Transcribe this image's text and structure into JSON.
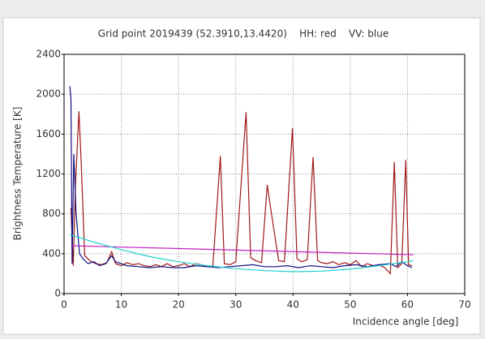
{
  "chart_data": {
    "type": "line",
    "title": "Grid point 2019439 (52.3910,13.4420)    HH: red    VV: blue",
    "x_label": "Incidence angle [deg]",
    "y_label": "Brightness Temperature [K]",
    "xlim": [
      0,
      70
    ],
    "xticks": [
      0,
      10,
      20,
      30,
      40,
      50,
      60,
      70
    ],
    "ylim": [
      0,
      2400
    ],
    "yticks": [
      0,
      400,
      800,
      1200,
      1600,
      2000,
      2400
    ],
    "grid": true,
    "series": [
      {
        "color": "#a01818",
        "x": [
          1.2,
          1.6,
          2.0,
          2.6,
          3.0,
          3.6,
          4.5,
          5.5,
          6.5,
          7.5,
          8.3,
          9,
          10,
          11,
          12,
          13,
          14,
          15,
          16,
          17,
          18,
          19,
          20,
          21,
          22,
          23,
          24,
          25,
          26,
          27.3,
          28,
          29,
          30,
          31.8,
          32.6,
          33.5,
          34.5,
          35.5,
          36.5,
          37.5,
          38.5,
          39.9,
          40.7,
          41.5,
          42.5,
          43.5,
          44.3,
          45,
          46,
          47,
          48,
          49,
          50,
          51,
          52,
          53,
          54,
          55,
          56,
          57,
          57.7,
          58.3,
          59,
          59.7,
          60.2,
          60.8
        ],
        "values": [
          860,
          280,
          1100,
          1830,
          1300,
          380,
          330,
          300,
          290,
          310,
          420,
          300,
          280,
          310,
          290,
          300,
          280,
          270,
          290,
          270,
          300,
          270,
          280,
          300,
          270,
          300,
          290,
          270,
          280,
          1380,
          300,
          290,
          320,
          1820,
          360,
          330,
          310,
          1090,
          700,
          330,
          320,
          1660,
          350,
          320,
          340,
          1370,
          330,
          310,
          300,
          320,
          290,
          310,
          290,
          330,
          270,
          300,
          280,
          290,
          260,
          200,
          1320,
          260,
          300,
          1340,
          290,
          280
        ]
      },
      {
        "color": "#101080",
        "x": [
          1.0,
          1.2,
          1.4,
          1.7,
          2.1,
          2.7,
          3.3,
          4.2,
          5.2,
          6.2,
          7.3,
          8.3,
          9,
          10,
          11,
          13,
          15,
          17,
          19,
          21,
          23,
          25,
          27,
          29,
          31,
          33,
          35,
          37,
          39,
          41,
          43,
          45,
          47,
          49,
          51,
          53,
          55,
          57,
          58,
          59,
          60,
          60.8
        ],
        "values": [
          2080,
          1950,
          300,
          1400,
          800,
          400,
          350,
          300,
          320,
          280,
          300,
          380,
          320,
          300,
          280,
          270,
          260,
          270,
          260,
          260,
          280,
          270,
          260,
          270,
          280,
          290,
          270,
          270,
          280,
          260,
          280,
          270,
          260,
          280,
          290,
          270,
          290,
          300,
          270,
          320,
          280,
          260
        ]
      },
      {
        "color": "#c020c0",
        "x": [
          1.2,
          61
        ],
        "values": [
          480,
          390
        ]
      },
      {
        "color": "#20d0d0",
        "x": [
          1,
          5,
          10,
          15,
          20,
          25,
          30,
          35,
          40,
          45,
          50,
          55,
          60,
          61
        ],
        "values": [
          590,
          520,
          440,
          370,
          320,
          280,
          250,
          230,
          220,
          225,
          245,
          280,
          320,
          330
        ]
      }
    ]
  }
}
